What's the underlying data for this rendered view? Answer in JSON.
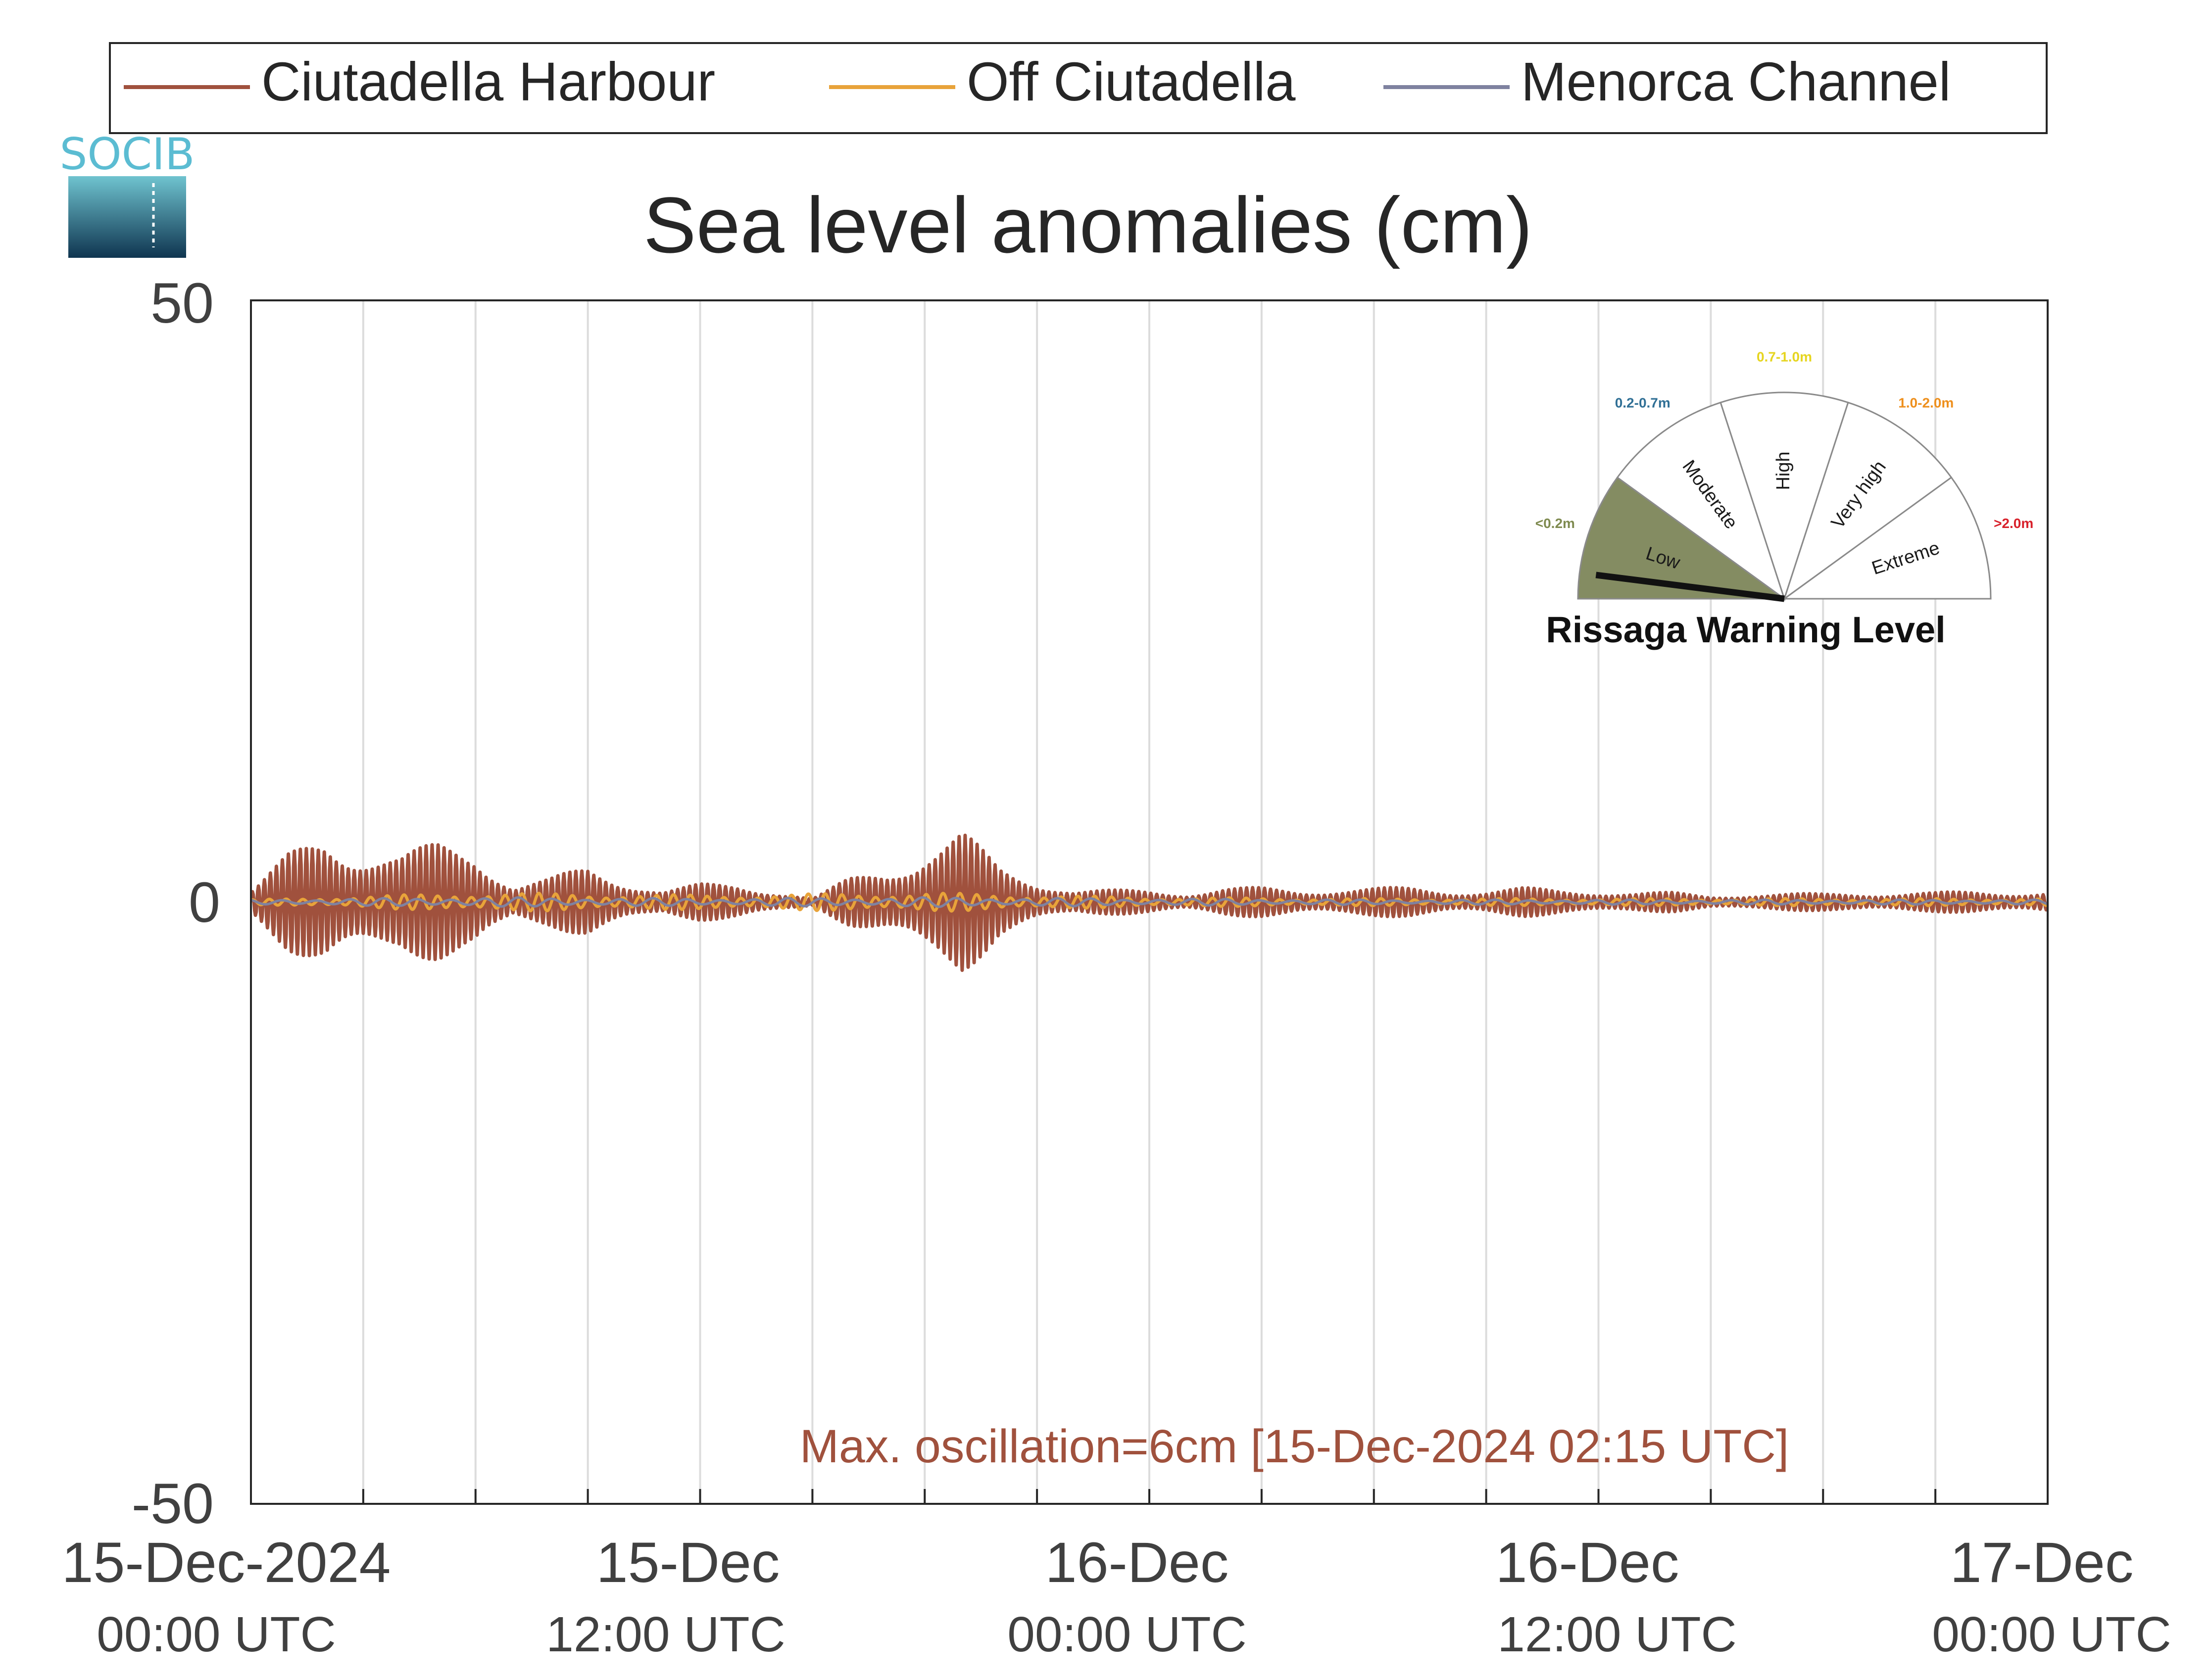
{
  "chart_data": {
    "type": "line",
    "title": "Sea level anomalies (cm)",
    "xlabel": "",
    "ylabel": "",
    "ylim": [
      -50,
      50
    ],
    "yticks": [
      50,
      0,
      -50
    ],
    "xlim_hours": [
      0,
      48
    ],
    "x_tick_labels": [
      {
        "date": "15-Dec-2024",
        "time": "00:00 UTC"
      },
      {
        "date": "15-Dec",
        "time": "12:00 UTC"
      },
      {
        "date": "16-Dec",
        "time": "00:00 UTC"
      },
      {
        "date": "16-Dec",
        "time": "12:00 UTC"
      },
      {
        "date": "17-Dec",
        "time": "00:00 UTC"
      }
    ],
    "grid": true,
    "legend_position": "top",
    "series": [
      {
        "name": "Ciutadella Harbour",
        "color": "#a0513d",
        "oscillation_envelope_cm": [
          [
            0,
            1
          ],
          [
            1,
            4
          ],
          [
            2,
            6
          ],
          [
            3,
            5
          ],
          [
            4,
            4
          ],
          [
            5,
            5
          ],
          [
            6,
            5
          ],
          [
            7,
            1.5
          ],
          [
            8,
            2
          ],
          [
            9,
            3
          ],
          [
            10,
            2
          ],
          [
            11,
            1
          ],
          [
            12,
            1.5
          ],
          [
            13,
            1.5
          ],
          [
            14,
            1
          ],
          [
            15,
            0.3
          ],
          [
            16,
            2
          ],
          [
            17,
            3
          ],
          [
            18,
            5
          ],
          [
            19,
            6
          ],
          [
            20,
            3
          ],
          [
            21,
            2
          ],
          [
            22,
            1
          ],
          [
            23,
            1
          ],
          [
            24,
            1
          ],
          [
            25,
            0.8
          ],
          [
            26,
            1.2
          ],
          [
            27,
            1.2
          ],
          [
            28,
            1
          ],
          [
            29,
            1.2
          ],
          [
            30,
            1.2
          ],
          [
            31,
            1.2
          ],
          [
            32,
            1
          ],
          [
            33,
            1
          ],
          [
            34,
            1.2
          ],
          [
            35,
            1
          ],
          [
            36,
            1
          ],
          [
            37,
            0.8
          ],
          [
            38,
            0.8
          ],
          [
            39,
            0.5
          ],
          [
            40,
            0.7
          ],
          [
            41,
            0.7
          ],
          [
            42,
            0.7
          ],
          [
            43,
            0.8
          ],
          [
            44,
            0.8
          ],
          [
            45,
            0.8
          ],
          [
            46,
            0.9
          ],
          [
            47,
            0.9
          ],
          [
            48,
            0.9
          ]
        ]
      },
      {
        "name": "Off Ciutadella",
        "color": "#e8a33a",
        "oscillation_envelope_cm": [
          [
            0,
            0.2
          ],
          [
            6,
            0.8
          ],
          [
            12,
            0.6
          ],
          [
            18,
            0.8
          ],
          [
            24,
            0.4
          ],
          [
            30,
            0.3
          ],
          [
            36,
            0.3
          ],
          [
            42,
            0.3
          ],
          [
            48,
            0.3
          ]
        ]
      },
      {
        "name": "Menorca Channel",
        "color": "#7f82a0",
        "oscillation_envelope_cm": [
          [
            0,
            0.2
          ],
          [
            6,
            0.4
          ],
          [
            12,
            0.3
          ],
          [
            18,
            0.4
          ],
          [
            24,
            0.3
          ],
          [
            30,
            0.2
          ],
          [
            36,
            0.2
          ],
          [
            42,
            0.2
          ],
          [
            48,
            0.2
          ]
        ]
      }
    ],
    "annotation": "Max. oscillation=6cm [15-Dec-2024 02:15 UTC]",
    "annotation_color": "#a0513d"
  },
  "logo": {
    "text": "SOCIB"
  },
  "gauge": {
    "title": "Rissaga Warning Level",
    "current_level": "Low",
    "needle_fraction": 0.04,
    "sectors": [
      {
        "label": "Low",
        "range": "<0.2m",
        "range_color": "#7e8a4f",
        "fill": "#848c62",
        "active": true
      },
      {
        "label": "Moderate",
        "range": "0.2-0.7m",
        "range_color": "#2f6f95",
        "fill": "#ffffff",
        "active": false
      },
      {
        "label": "High",
        "range": "0.7-1.0m",
        "range_color": "#e6d51f",
        "fill": "#ffffff",
        "active": false
      },
      {
        "label": "Very high",
        "range": "1.0-2.0m",
        "range_color": "#ee8f1c",
        "fill": "#ffffff",
        "active": false
      },
      {
        "label": "Extreme",
        "range": ">2.0m",
        "range_color": "#d8202a",
        "fill": "#ffffff",
        "active": false
      }
    ]
  }
}
